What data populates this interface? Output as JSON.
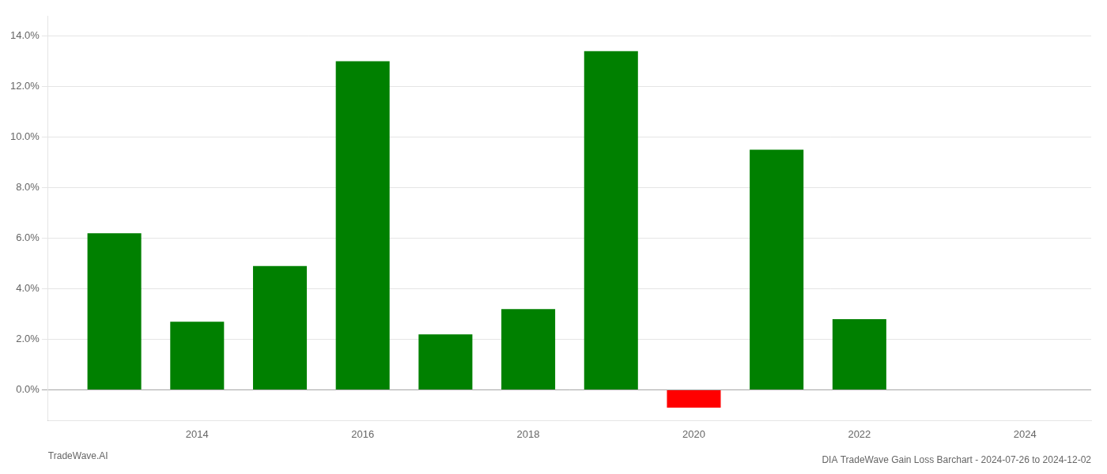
{
  "chart_data": {
    "type": "bar",
    "title": "DIA TradeWave Gain Loss Barchart - 2024-07-26 to 2024-12-02",
    "annotations": [
      "TradeWave.AI"
    ],
    "x": [
      2013,
      2014,
      2015,
      2016,
      2017,
      2018,
      2019,
      2020,
      2021,
      2022
    ],
    "values": [
      0.062,
      0.027,
      0.049,
      0.13,
      0.022,
      0.032,
      0.134,
      -0.007,
      0.095,
      0.028
    ],
    "colors": [
      "#008000",
      "#008000",
      "#008000",
      "#008000",
      "#008000",
      "#008000",
      "#008000",
      "#ff0000",
      "#008000",
      "#008000"
    ],
    "xlim": [
      2012.2,
      2024.8
    ],
    "xticks": [
      2014,
      2016,
      2018,
      2020,
      2022,
      2024
    ],
    "ylim": [
      -0.012,
      0.148
    ],
    "yticks": [
      {
        "value": 0.0,
        "label": "0.0%"
      },
      {
        "value": 0.02,
        "label": "2.0%"
      },
      {
        "value": 0.04,
        "label": "4.0%"
      },
      {
        "value": 0.06,
        "label": "6.0%"
      },
      {
        "value": 0.08,
        "label": "8.0%"
      },
      {
        "value": 0.1,
        "label": "10.0%"
      },
      {
        "value": 0.12,
        "label": "12.0%"
      },
      {
        "value": 0.14,
        "label": "14.0%"
      }
    ],
    "grid": "y"
  }
}
